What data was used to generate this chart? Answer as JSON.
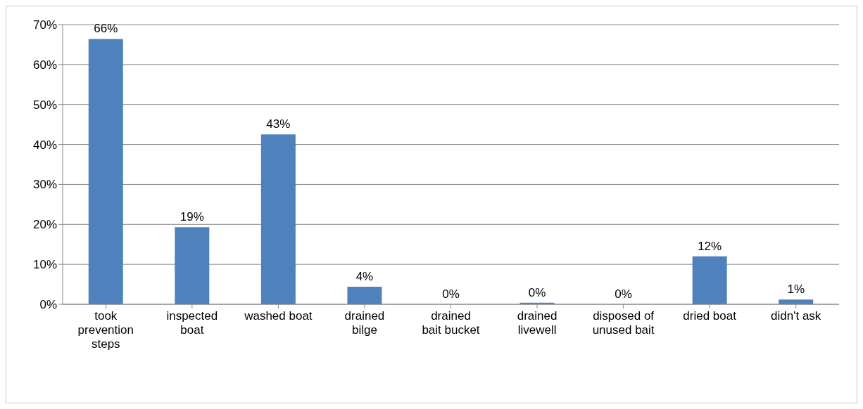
{
  "chart_data": {
    "type": "bar",
    "categories": [
      "took prevention steps",
      "inspected boat",
      "washed boat",
      "drained bilge",
      "drained bait bucket",
      "drained livewell",
      "disposed of unused bait",
      "dried boat",
      "didn't ask"
    ],
    "values": [
      66.4,
      19.3,
      42.5,
      4.4,
      0,
      0.4,
      0,
      12,
      1.2
    ],
    "value_labels": [
      "66%",
      "19%",
      "43%",
      "4%",
      "0%",
      "0%",
      "0%",
      "12%",
      "1%"
    ],
    "color": "#4f81bd",
    "ylim": [
      0,
      70
    ],
    "yticks": [
      {
        "value": 0,
        "label": "0%"
      },
      {
        "value": 10,
        "label": "10%"
      },
      {
        "value": 20,
        "label": "20%"
      },
      {
        "value": 30,
        "label": "30%"
      },
      {
        "value": 40,
        "label": "40%"
      },
      {
        "value": 50,
        "label": "50%"
      },
      {
        "value": 60,
        "label": "60%"
      },
      {
        "value": 70,
        "label": "70%"
      }
    ],
    "grid": "y"
  }
}
